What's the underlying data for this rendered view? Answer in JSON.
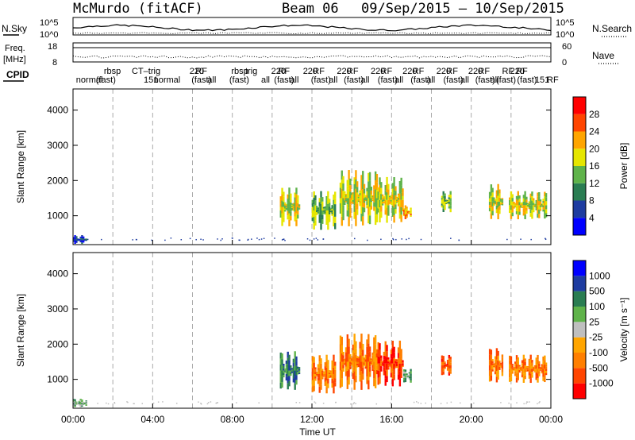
{
  "header": {
    "site": "McMurdo (fitACF)",
    "beam": "Beam 06",
    "date_range": "09/Sep/2015 – 10/Sep/2015"
  },
  "top_panels": {
    "nsky_label": "N.Sky",
    "nsearch_label": "N.Search",
    "nsky_ticks": [
      "10^5",
      "10^0"
    ],
    "nsearch_ticks": [
      "10^5",
      "10^0"
    ],
    "freq_label": "Freq.",
    "freq_unit": "[MHz]",
    "freq_ticks": [
      "18",
      "8"
    ],
    "nave_label": "Nave",
    "nave_ticks": [
      "60",
      "0"
    ],
    "cpid_label": "CPID"
  },
  "cpid_labels": [
    {
      "t": 0.15,
      "text": "normal",
      "row": 1
    },
    {
      "t": 1.15,
      "text": "(fast)",
      "row": 1
    },
    {
      "t": 1.55,
      "text": "rbsp",
      "row": 0
    },
    {
      "t": 2.95,
      "text": "CT–trig",
      "row": 0
    },
    {
      "t": 3.55,
      "text": "151",
      "row": 1
    },
    {
      "t": 4.05,
      "text": "normal",
      "row": 1
    },
    {
      "t": 5.85,
      "text": "220",
      "row": 0
    },
    {
      "t": 6.15,
      "text": "RF",
      "row": 0
    },
    {
      "t": 5.95,
      "text": "(fast)",
      "row": 1
    },
    {
      "t": 6.75,
      "text": "all",
      "row": 1
    },
    {
      "t": 7.95,
      "text": "rbsp",
      "row": 0
    },
    {
      "t": 7.85,
      "text": "(fast)",
      "row": 1
    },
    {
      "t": 8.65,
      "text": "trig",
      "row": 0
    },
    {
      "t": 9.45,
      "text": "all",
      "row": 1
    },
    {
      "t": 9.95,
      "text": "220",
      "row": 0
    },
    {
      "t": 10.3,
      "text": "RF",
      "row": 0
    },
    {
      "t": 10.1,
      "text": "(fast)",
      "row": 1
    },
    {
      "t": 10.9,
      "text": "all",
      "row": 1
    },
    {
      "t": 11.55,
      "text": "220",
      "row": 0
    },
    {
      "t": 12.05,
      "text": "RF",
      "row": 0
    },
    {
      "t": 11.95,
      "text": "(fast)",
      "row": 1
    },
    {
      "t": 12.85,
      "text": "all",
      "row": 1
    },
    {
      "t": 13.25,
      "text": "220",
      "row": 0
    },
    {
      "t": 13.75,
      "text": "RF",
      "row": 0
    },
    {
      "t": 13.6,
      "text": "(fast)",
      "row": 1
    },
    {
      "t": 14.45,
      "text": "all",
      "row": 1
    },
    {
      "t": 14.95,
      "text": "220",
      "row": 0
    },
    {
      "t": 15.45,
      "text": "RF",
      "row": 0
    },
    {
      "t": 15.3,
      "text": "(fast)",
      "row": 1
    },
    {
      "t": 16.15,
      "text": "all",
      "row": 1
    },
    {
      "t": 16.55,
      "text": "220",
      "row": 0
    },
    {
      "t": 17.05,
      "text": "RF",
      "row": 0
    },
    {
      "t": 16.95,
      "text": "(fast)",
      "row": 1
    },
    {
      "t": 17.75,
      "text": "all",
      "row": 1
    },
    {
      "t": 18.25,
      "text": "220",
      "row": 0
    },
    {
      "t": 18.75,
      "text": "RF",
      "row": 0
    },
    {
      "t": 18.6,
      "text": "(fast)",
      "row": 1
    },
    {
      "t": 19.45,
      "text": "all",
      "row": 1
    },
    {
      "t": 19.85,
      "text": "220",
      "row": 0
    },
    {
      "t": 20.35,
      "text": "RF",
      "row": 0
    },
    {
      "t": 20.2,
      "text": "(fast)",
      "row": 1
    },
    {
      "t": 20.95,
      "text": "all",
      "row": 1
    },
    {
      "t": 21.25,
      "text": "(fast)",
      "row": 1
    },
    {
      "t": 21.55,
      "text": "RF",
      "row": 0
    },
    {
      "t": 21.95,
      "text": "220",
      "row": 0
    },
    {
      "t": 22.25,
      "text": "RF",
      "row": 0
    },
    {
      "t": 22.3,
      "text": "(fast)",
      "row": 1
    },
    {
      "t": 23.2,
      "text": "151",
      "row": 1
    },
    {
      "t": 23.8,
      "text": "RF",
      "row": 1
    }
  ],
  "chart_data": [
    {
      "type": "heatmap",
      "name": "power",
      "x_range_hours": [
        0,
        24
      ],
      "y_range_km": [
        180,
        4600
      ],
      "xlabel": "Time UT",
      "ylabel": "Slant Range [km]",
      "x_ticks": [
        "00:00",
        "04:00",
        "08:00",
        "12:00",
        "16:00",
        "20:00",
        "00:00"
      ],
      "y_ticks": [
        1000,
        2000,
        3000,
        4000
      ],
      "colorbar": {
        "label": "Power [dB]",
        "ticks": [
          28,
          24,
          20,
          16,
          12,
          8,
          4
        ],
        "colors": [
          "#0000ff",
          "#1e3ca0",
          "#2a7d52",
          "#5fb34a",
          "#e6e600",
          "#ffa500",
          "#ff4500",
          "#ff0000"
        ]
      },
      "regions": [
        {
          "t": [
            0.0,
            0.7
          ],
          "r": [
            200,
            450
          ],
          "level": 1
        },
        {
          "t": [
            10.4,
            11.4
          ],
          "r": [
            700,
            1800
          ],
          "level": 4
        },
        {
          "t": [
            12.0,
            13.2
          ],
          "r": [
            600,
            1700
          ],
          "level": 3
        },
        {
          "t": [
            13.4,
            15.3
          ],
          "r": [
            700,
            2300
          ],
          "level": 4
        },
        {
          "t": [
            15.3,
            16.6
          ],
          "r": [
            800,
            2100
          ],
          "level": 4
        },
        {
          "t": [
            16.6,
            17.0
          ],
          "r": [
            900,
            1300
          ],
          "level": 5
        },
        {
          "t": [
            18.5,
            19.0
          ],
          "r": [
            1100,
            1700
          ],
          "level": 3
        },
        {
          "t": [
            20.9,
            21.6
          ],
          "r": [
            900,
            1900
          ],
          "level": 4
        },
        {
          "t": [
            21.9,
            23.8
          ],
          "r": [
            900,
            1700
          ],
          "level": 4
        }
      ]
    },
    {
      "type": "heatmap",
      "name": "velocity",
      "x_range_hours": [
        0,
        24
      ],
      "y_range_km": [
        180,
        4600
      ],
      "xlabel": "Time UT",
      "ylabel": "Slant Range [km]",
      "x_ticks": [
        "00:00",
        "04:00",
        "08:00",
        "12:00",
        "16:00",
        "20:00",
        "00:00"
      ],
      "y_ticks": [
        1000,
        2000,
        3000,
        4000
      ],
      "colorbar": {
        "label": "Velocity [m s⁻¹]",
        "ticks": [
          1000,
          500,
          100,
          25,
          -25,
          -100,
          -500,
          -1000
        ],
        "colors": [
          "#ff0000",
          "#ff4500",
          "#ff7f00",
          "#ffa500",
          "#bfbfbf",
          "#5fb34a",
          "#2a7d52",
          "#1e3ca0",
          "#0000ff"
        ]
      },
      "regions": [
        {
          "t": [
            0.0,
            0.7
          ],
          "r": [
            200,
            450
          ],
          "level": 5
        },
        {
          "t": [
            10.4,
            11.4
          ],
          "r": [
            700,
            1800
          ],
          "level": 6
        },
        {
          "t": [
            12.0,
            13.2
          ],
          "r": [
            600,
            1700
          ],
          "level": 2
        },
        {
          "t": [
            13.4,
            15.3
          ],
          "r": [
            700,
            2300
          ],
          "level": 2
        },
        {
          "t": [
            15.3,
            16.6
          ],
          "r": [
            800,
            2100
          ],
          "level": 1
        },
        {
          "t": [
            16.6,
            17.0
          ],
          "r": [
            900,
            1300
          ],
          "level": 5
        },
        {
          "t": [
            18.5,
            19.0
          ],
          "r": [
            1100,
            1700
          ],
          "level": 1
        },
        {
          "t": [
            20.9,
            21.6
          ],
          "r": [
            900,
            1900
          ],
          "level": 2
        },
        {
          "t": [
            21.9,
            23.8
          ],
          "r": [
            900,
            1700
          ],
          "level": 2
        }
      ]
    }
  ]
}
